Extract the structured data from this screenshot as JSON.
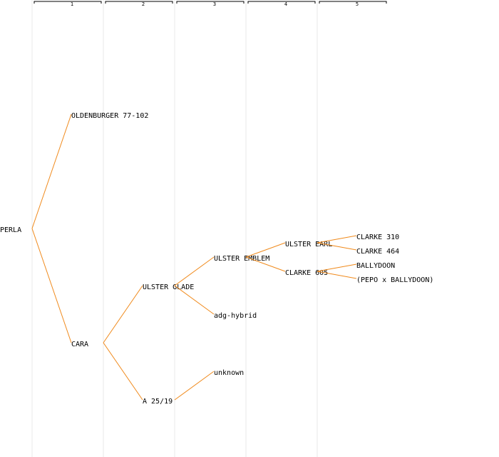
{
  "columns": [
    "1",
    "2",
    "3",
    "4",
    "5"
  ],
  "tree": {
    "label": "PERLA",
    "parents": [
      {
        "label": "OLDENBURGER 77-102"
      },
      {
        "label": "CARA",
        "parents": [
          {
            "label": "ULSTER GLADE",
            "parents": [
              {
                "label": "ULSTER EMBLEM",
                "parents": [
                  {
                    "label": "ULSTER EARL",
                    "color": "#0000cc",
                    "parents": [
                      {
                        "label": "CLARKE 310"
                      },
                      {
                        "label": "CLARKE 464"
                      }
                    ]
                  },
                  {
                    "label": "CLARKE 605",
                    "parents": [
                      {
                        "label": "BALLYDOON"
                      },
                      {
                        "label": "(PEPO x BALLYDOON)"
                      }
                    ]
                  }
                ]
              },
              {
                "label": "adg-hybrid"
              }
            ]
          },
          {
            "label": "A 25/19",
            "parents": [
              {
                "label": "unknown"
              }
            ]
          }
        ]
      }
    ]
  }
}
